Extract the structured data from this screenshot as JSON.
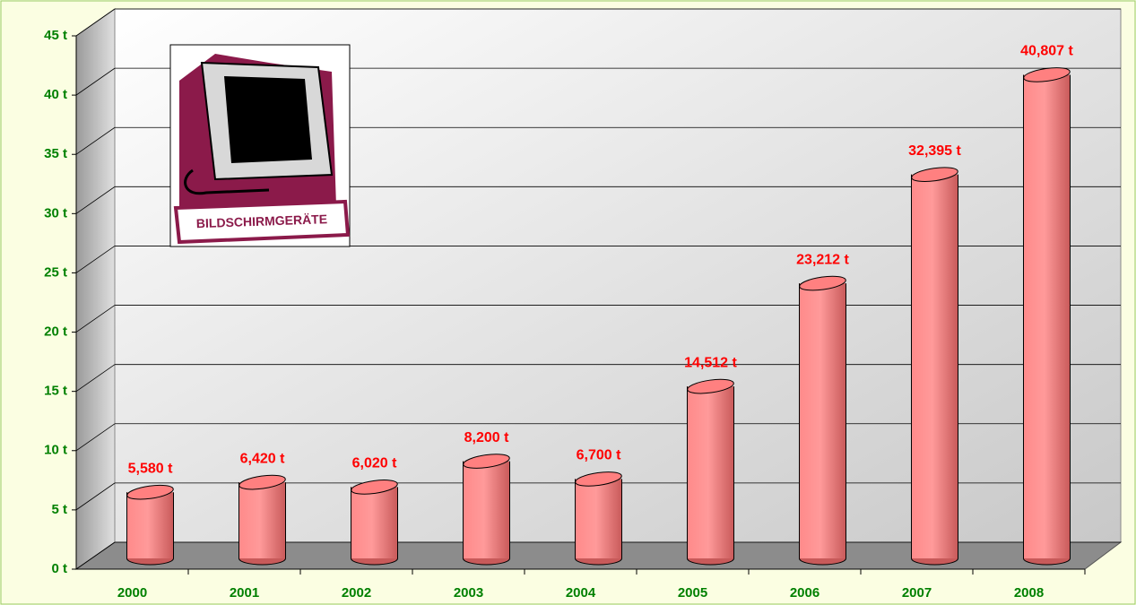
{
  "chart_data": {
    "type": "bar",
    "annotation": "BILDSCHIRMGERÄTE",
    "categories": [
      "2000",
      "2001",
      "2002",
      "2003",
      "2004",
      "2005",
      "2006",
      "2007",
      "2008"
    ],
    "values": [
      5.58,
      6.42,
      6.02,
      8.2,
      6.7,
      14.512,
      23.212,
      32.395,
      40.807
    ],
    "value_labels": [
      "5,580 t",
      "6,420 t",
      "6,020 t",
      "8,200 t",
      "6,700 t",
      "14,512 t",
      "23,212 t",
      "32,395 t",
      "40,807 t"
    ],
    "color": "#ff8080",
    "ylim": [
      0,
      45
    ],
    "yticks": [
      {
        "value": 0,
        "label": "0 t"
      },
      {
        "value": 5,
        "label": "5 t"
      },
      {
        "value": 10,
        "label": "10 t"
      },
      {
        "value": 15,
        "label": "15 t"
      },
      {
        "value": 20,
        "label": "20 t"
      },
      {
        "value": 25,
        "label": "25 t"
      },
      {
        "value": 30,
        "label": "30 t"
      },
      {
        "value": 35,
        "label": "35 t"
      },
      {
        "value": 40,
        "label": "40 t"
      },
      {
        "value": 45,
        "label": "45 t"
      }
    ],
    "grid": true
  }
}
